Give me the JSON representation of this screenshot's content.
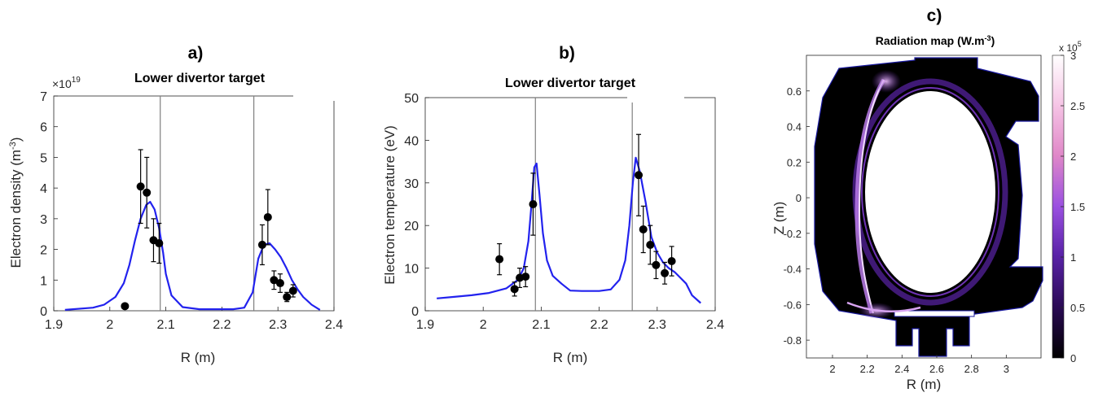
{
  "chart_data": [
    {
      "type": "line",
      "panel_label": "a)",
      "title": "Lower divertor target",
      "xlabel": "R (m)",
      "ylabel": "Electron density (m",
      "ylabel_sup": "-3",
      "ylabel_end": ")",
      "exponent_base": "×10",
      "exponent_power": "19",
      "xlim": [
        1.9,
        2.4
      ],
      "ylim": [
        0,
        7
      ],
      "xticks": [
        "1.9",
        "2",
        "2.1",
        "2.2",
        "2.3",
        "2.4"
      ],
      "yticks": [
        "0",
        "1",
        "2",
        "3",
        "4",
        "5",
        "6",
        "7"
      ],
      "vlines": [
        2.09,
        2.257
      ],
      "line_color": "#2222ee",
      "series": [
        {
          "kind": "simulation",
          "x": [
            1.92,
            1.97,
            1.99,
            2.01,
            2.025,
            2.035,
            2.045,
            2.055,
            2.065,
            2.072,
            2.08,
            2.088,
            2.095,
            2.1,
            2.11,
            2.13,
            2.16,
            2.19,
            2.22,
            2.24,
            2.255,
            2.265,
            2.275,
            2.285,
            2.295,
            2.305,
            2.315,
            2.325,
            2.335,
            2.345,
            2.36,
            2.375
          ],
          "y": [
            0.03,
            0.1,
            0.2,
            0.45,
            0.9,
            1.5,
            2.3,
            3.0,
            3.45,
            3.55,
            3.3,
            2.7,
            1.9,
            1.2,
            0.5,
            0.12,
            0.05,
            0.05,
            0.05,
            0.1,
            0.6,
            1.7,
            2.15,
            2.2,
            2.0,
            1.75,
            1.4,
            1.0,
            0.7,
            0.45,
            0.2,
            0.03
          ]
        },
        {
          "kind": "measurement",
          "points": [
            {
              "x": 2.027,
              "y": 0.15,
              "err": 0
            },
            {
              "x": 2.055,
              "y": 4.05,
              "err": 1.2
            },
            {
              "x": 2.066,
              "y": 3.85,
              "err": 1.15
            },
            {
              "x": 2.078,
              "y": 2.3,
              "err": 0.7
            },
            {
              "x": 2.088,
              "y": 2.2,
              "err": 0.65
            },
            {
              "x": 2.272,
              "y": 2.15,
              "err": 0.65
            },
            {
              "x": 2.282,
              "y": 3.05,
              "err": 0.9
            },
            {
              "x": 2.293,
              "y": 1.0,
              "err": 0.3
            },
            {
              "x": 2.304,
              "y": 0.9,
              "err": 0.3
            },
            {
              "x": 2.316,
              "y": 0.45,
              "err": 0.15
            },
            {
              "x": 2.327,
              "y": 0.65,
              "err": 0.2
            }
          ]
        }
      ]
    },
    {
      "type": "line",
      "panel_label": "b)",
      "title": "Lower divertor target",
      "xlabel": "R (m)",
      "ylabel": "Electron temperature (eV)",
      "xlim": [
        1.9,
        2.4
      ],
      "ylim": [
        0,
        55
      ],
      "xticks": [
        "1.9",
        "2",
        "2.1",
        "2.2",
        "2.3",
        "2.4"
      ],
      "yticks": [
        "0",
        "10",
        "20",
        "30",
        "40",
        "50"
      ],
      "vlines": [
        2.09,
        2.257
      ],
      "line_color": "#2222ee",
      "series": [
        {
          "kind": "simulation",
          "x": [
            1.92,
            1.95,
            1.98,
            2.01,
            2.04,
            2.06,
            2.07,
            2.078,
            2.083,
            2.088,
            2.092,
            2.097,
            2.103,
            2.11,
            2.12,
            2.135,
            2.15,
            2.17,
            2.2,
            2.22,
            2.235,
            2.245,
            2.252,
            2.258,
            2.263,
            2.27,
            2.28,
            2.29,
            2.3,
            2.31,
            2.32,
            2.33,
            2.34,
            2.35,
            2.36,
            2.375
          ],
          "y": [
            3.2,
            3.6,
            4.0,
            4.6,
            5.8,
            8.0,
            11,
            18,
            27,
            37,
            38,
            30,
            20,
            13,
            9,
            7,
            5.2,
            5.1,
            5.1,
            5.5,
            8,
            13,
            22,
            33,
            39.5,
            36,
            28,
            19,
            15,
            12.5,
            11,
            10,
            8.5,
            7,
            4,
            2
          ]
        },
        {
          "kind": "measurement",
          "points": [
            {
              "x": 2.028,
              "y": 13.3,
              "err": 4
            },
            {
              "x": 2.054,
              "y": 5.6,
              "err": 1.8
            },
            {
              "x": 2.063,
              "y": 8.5,
              "err": 2.5
            },
            {
              "x": 2.073,
              "y": 8.8,
              "err": 2.6
            },
            {
              "x": 2.086,
              "y": 27.5,
              "err": 8
            },
            {
              "x": 2.268,
              "y": 35,
              "err": 10.5
            },
            {
              "x": 2.276,
              "y": 21,
              "err": 6
            },
            {
              "x": 2.288,
              "y": 17,
              "err": 5
            },
            {
              "x": 2.298,
              "y": 11.8,
              "err": 3.5
            },
            {
              "x": 2.313,
              "y": 9.7,
              "err": 2.8
            },
            {
              "x": 2.325,
              "y": 12.8,
              "err": 3.8
            }
          ]
        }
      ]
    },
    {
      "type": "heatmap",
      "panel_label": "c)",
      "title": "Radiation map (W.m",
      "title_sup": "-3",
      "title_end": ")",
      "xlabel": "R (m)",
      "ylabel": "Z (m)",
      "xlim": [
        1.85,
        3.2
      ],
      "ylim": [
        -0.9,
        0.8
      ],
      "xticks": [
        "2",
        "2.2",
        "2.4",
        "2.6",
        "2.8",
        "3"
      ],
      "yticks": [
        "0.6",
        "0.4",
        "0.2",
        "0",
        "-0.2",
        "-0.4",
        "-0.6",
        "-0.8"
      ],
      "colorbar": {
        "range": [
          0,
          3
        ],
        "ticks": [
          "0",
          "0.5",
          "1",
          "1.5",
          "2",
          "2.5",
          "3"
        ],
        "exponent_base": "x 10",
        "exponent_power": "5",
        "colors": [
          "#000000",
          "#2a0a55",
          "#5a23a8",
          "#9a50e0",
          "#e088c8",
          "#f6c6e6",
          "#ffffff"
        ]
      }
    }
  ]
}
